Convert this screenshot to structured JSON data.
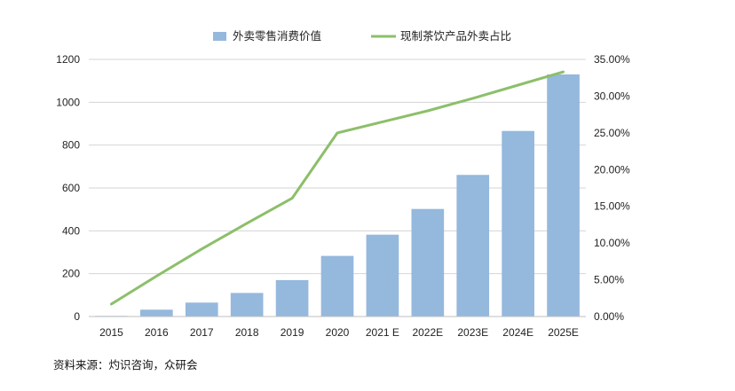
{
  "chart_data": {
    "type": "bar+line",
    "categories": [
      "2015",
      "2016",
      "2017",
      "2018",
      "2019",
      "2020",
      "2021 E",
      "2022E",
      "2023E",
      "2024E",
      "2025E"
    ],
    "series": [
      {
        "name": "外卖零售消费价值",
        "type": "bar",
        "axis": "left",
        "color": "#95b8dd",
        "values": [
          3,
          32,
          65,
          110,
          170,
          283,
          382,
          502,
          661,
          866,
          1130
        ]
      },
      {
        "name": "现制茶饮产品外卖占比",
        "type": "line",
        "axis": "right",
        "color": "#8cbf6a",
        "values": [
          0.017,
          0.055,
          0.092,
          0.127,
          0.161,
          0.25,
          0.265,
          0.28,
          0.297,
          0.315,
          0.333
        ]
      }
    ],
    "yleft": {
      "min": 0,
      "max": 1200,
      "step": 200
    },
    "yright": {
      "min": 0,
      "max": 0.35,
      "step": 0.05,
      "format": "percent2"
    },
    "grid": true,
    "legend_position": "top-center"
  },
  "source_note": "资料来源：灼识咨询，众研会"
}
